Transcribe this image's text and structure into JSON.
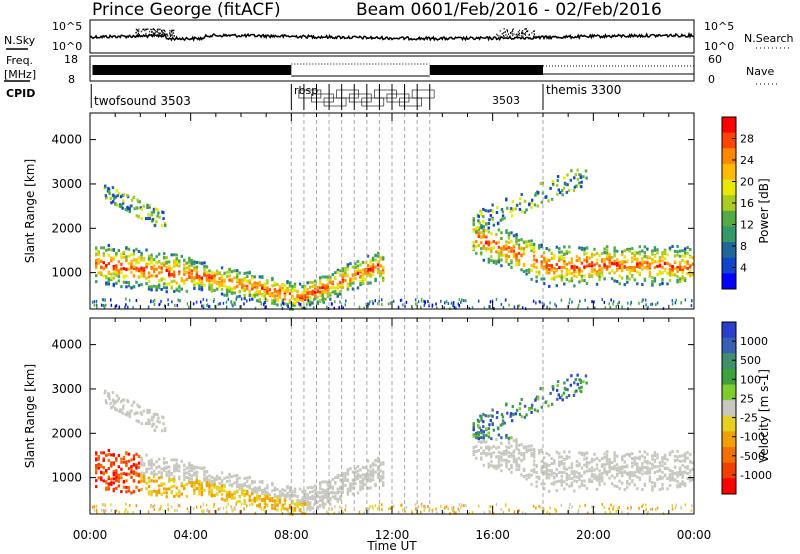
{
  "header": {
    "station": "Prince George (fitACF)",
    "beam": "Beam 06",
    "date_range": "01/Feb/2016 - 02/Feb/2016"
  },
  "left_labels": {
    "nsky": "N.Sky",
    "freq_line1": "Freq.",
    "freq_line2": "[MHz]",
    "cpid": "CPID"
  },
  "right_labels": {
    "nsearch": "N.Search",
    "nave": "Nave"
  },
  "noise_axis": {
    "left_top": "10^5",
    "left_bottom": "10^0",
    "right_top": "10^5",
    "right_bottom": "10^0"
  },
  "freq_axis": {
    "left_top": "18",
    "left_bottom": "8",
    "right_top": "60",
    "right_bottom": "0"
  },
  "cpid": {
    "twofsound": "twofsound 3503",
    "themis": "themis 3300",
    "rbsp": "rbsp",
    "middle_block": "3503"
  },
  "power_colorbar": {
    "title": "Power [dB]",
    "ticks": [
      "28",
      "24",
      "20",
      "16",
      "12",
      "8",
      "4"
    ],
    "colors": [
      "#ff0000",
      "#ff4400",
      "#ff8800",
      "#ffbb00",
      "#e8e800",
      "#aacc22",
      "#55aa44",
      "#339966",
      "#226699",
      "#1144cc",
      "#0000ff"
    ]
  },
  "velocity_colorbar": {
    "title": "Velocity [m s-1]",
    "ticks": [
      "1000",
      "500",
      "100",
      "25",
      "-25",
      "-100",
      "-500",
      "-1000"
    ],
    "colors": [
      "#2a3fcc",
      "#3a5fb0",
      "#3f8f6a",
      "#3fa040",
      "#7fcc30",
      "#c8c8c0",
      "#e8d020",
      "#f0a000",
      "#f07000",
      "#f04000",
      "#ff0000"
    ]
  },
  "chart_data": [
    {
      "type": "heatmap",
      "panel": "power",
      "ylabel": "Slant Range [km]",
      "yticks": [
        1000,
        2000,
        3000,
        4000
      ],
      "ylim": [
        180,
        4600
      ],
      "xlim": [
        0,
        24
      ],
      "xticks": [
        "00:00",
        "04:00",
        "08:00",
        "12:00",
        "16:00",
        "20:00",
        "00:00"
      ],
      "colorbar": "Power [dB]"
    },
    {
      "type": "heatmap",
      "panel": "velocity",
      "ylabel": "Slant Range [km]",
      "yticks": [
        1000,
        2000,
        3000,
        4000
      ],
      "ylim": [
        180,
        4600
      ],
      "xlim": [
        0,
        24
      ],
      "xticks": [
        "00:00",
        "04:00",
        "08:00",
        "12:00",
        "16:00",
        "20:00",
        "00:00"
      ],
      "xlabel": "Time UT",
      "colorbar": "Velocity [m s-1]"
    }
  ]
}
